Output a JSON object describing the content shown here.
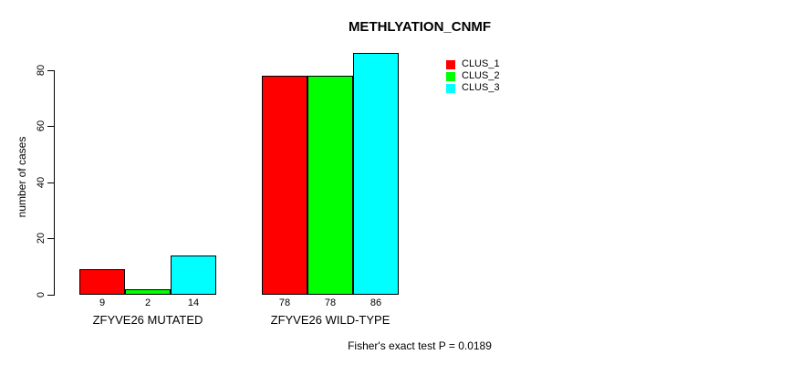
{
  "title": "METHLYATION_CNMF",
  "footer": "Fisher's exact test P = 0.0189",
  "y_axis": {
    "label": "number of cases",
    "ticks": [
      0,
      20,
      40,
      60,
      80
    ]
  },
  "legend": {
    "items": [
      {
        "label": "CLUS_1",
        "color": "#ff0000"
      },
      {
        "label": "CLUS_2",
        "color": "#00ff00"
      },
      {
        "label": "CLUS_3",
        "color": "#00ffff"
      }
    ]
  },
  "chart_data": {
    "type": "bar",
    "title": "METHLYATION_CNMF",
    "ylabel": "number of cases",
    "ylim": [
      0,
      86
    ],
    "yticks": [
      0,
      20,
      40,
      60,
      80
    ],
    "categories": [
      "ZFYVE26 MUTATED",
      "ZFYVE26 WILD-TYPE"
    ],
    "series": [
      {
        "name": "CLUS_1",
        "color": "#ff0000",
        "values": [
          9,
          78
        ]
      },
      {
        "name": "CLUS_2",
        "color": "#00ff00",
        "values": [
          2,
          78
        ]
      },
      {
        "name": "CLUS_3",
        "color": "#00ffff",
        "values": [
          14,
          86
        ]
      }
    ],
    "bar_value_labels": [
      [
        9,
        2,
        14
      ],
      [
        78,
        78,
        86
      ]
    ],
    "annotation": "Fisher's exact test P = 0.0189",
    "legend_position": "top-right",
    "grid": false
  }
}
